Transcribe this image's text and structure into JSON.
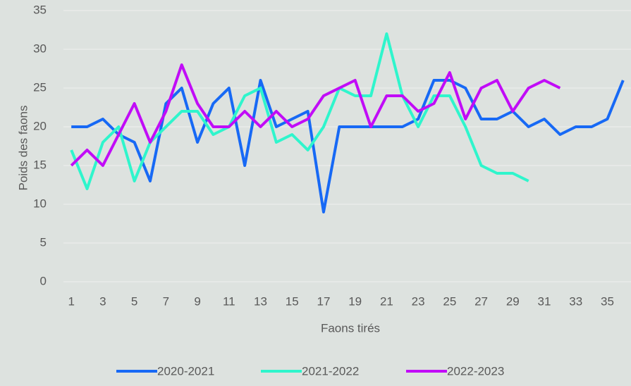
{
  "chart_data": {
    "type": "line",
    "x_label": "Faons tirés",
    "y_label": "Poids des faons",
    "x": [
      1,
      2,
      3,
      4,
      5,
      6,
      7,
      8,
      9,
      10,
      11,
      12,
      13,
      14,
      15,
      16,
      17,
      18,
      19,
      20,
      21,
      22,
      23,
      24,
      25,
      26,
      27,
      28,
      29,
      30,
      31,
      32,
      33,
      34,
      35,
      36
    ],
    "xlim": [
      0.5,
      36.5
    ],
    "xticks": [
      1,
      3,
      5,
      7,
      9,
      11,
      13,
      15,
      17,
      19,
      21,
      23,
      25,
      27,
      29,
      31,
      33,
      35
    ],
    "ylim": [
      0,
      35
    ],
    "yticks": [
      0,
      5,
      10,
      15,
      20,
      25,
      30,
      35
    ],
    "grid": true,
    "legend": "bottom",
    "series": [
      {
        "name": "2020-2021",
        "color": "#1769f5",
        "values": [
          20,
          20,
          21,
          19,
          18,
          13,
          23,
          25,
          18,
          23,
          25,
          15,
          26,
          20,
          21,
          22,
          9,
          20,
          20,
          20,
          20,
          20,
          21,
          26,
          26,
          25,
          21,
          21,
          22,
          20,
          21,
          19,
          20,
          20,
          21,
          26
        ]
      },
      {
        "name": "2021-2022",
        "color": "#2ff5cc",
        "values": [
          17,
          12,
          18,
          20,
          13,
          18,
          20,
          22,
          22,
          19,
          20,
          24,
          25,
          18,
          19,
          17,
          20,
          25,
          24,
          24,
          32,
          24,
          20,
          24,
          24,
          20,
          15,
          14,
          14,
          13,
          null,
          null,
          null,
          null,
          null,
          null
        ]
      },
      {
        "name": "2022-2023",
        "color": "#c10cf7",
        "values": [
          15,
          17,
          15,
          19,
          23,
          18,
          22,
          28,
          23,
          20,
          20,
          22,
          20,
          22,
          20,
          21,
          24,
          25,
          26,
          20,
          24,
          24,
          22,
          23,
          27,
          21,
          25,
          26,
          22,
          25,
          26,
          25,
          null,
          null,
          null,
          null
        ]
      }
    ]
  }
}
